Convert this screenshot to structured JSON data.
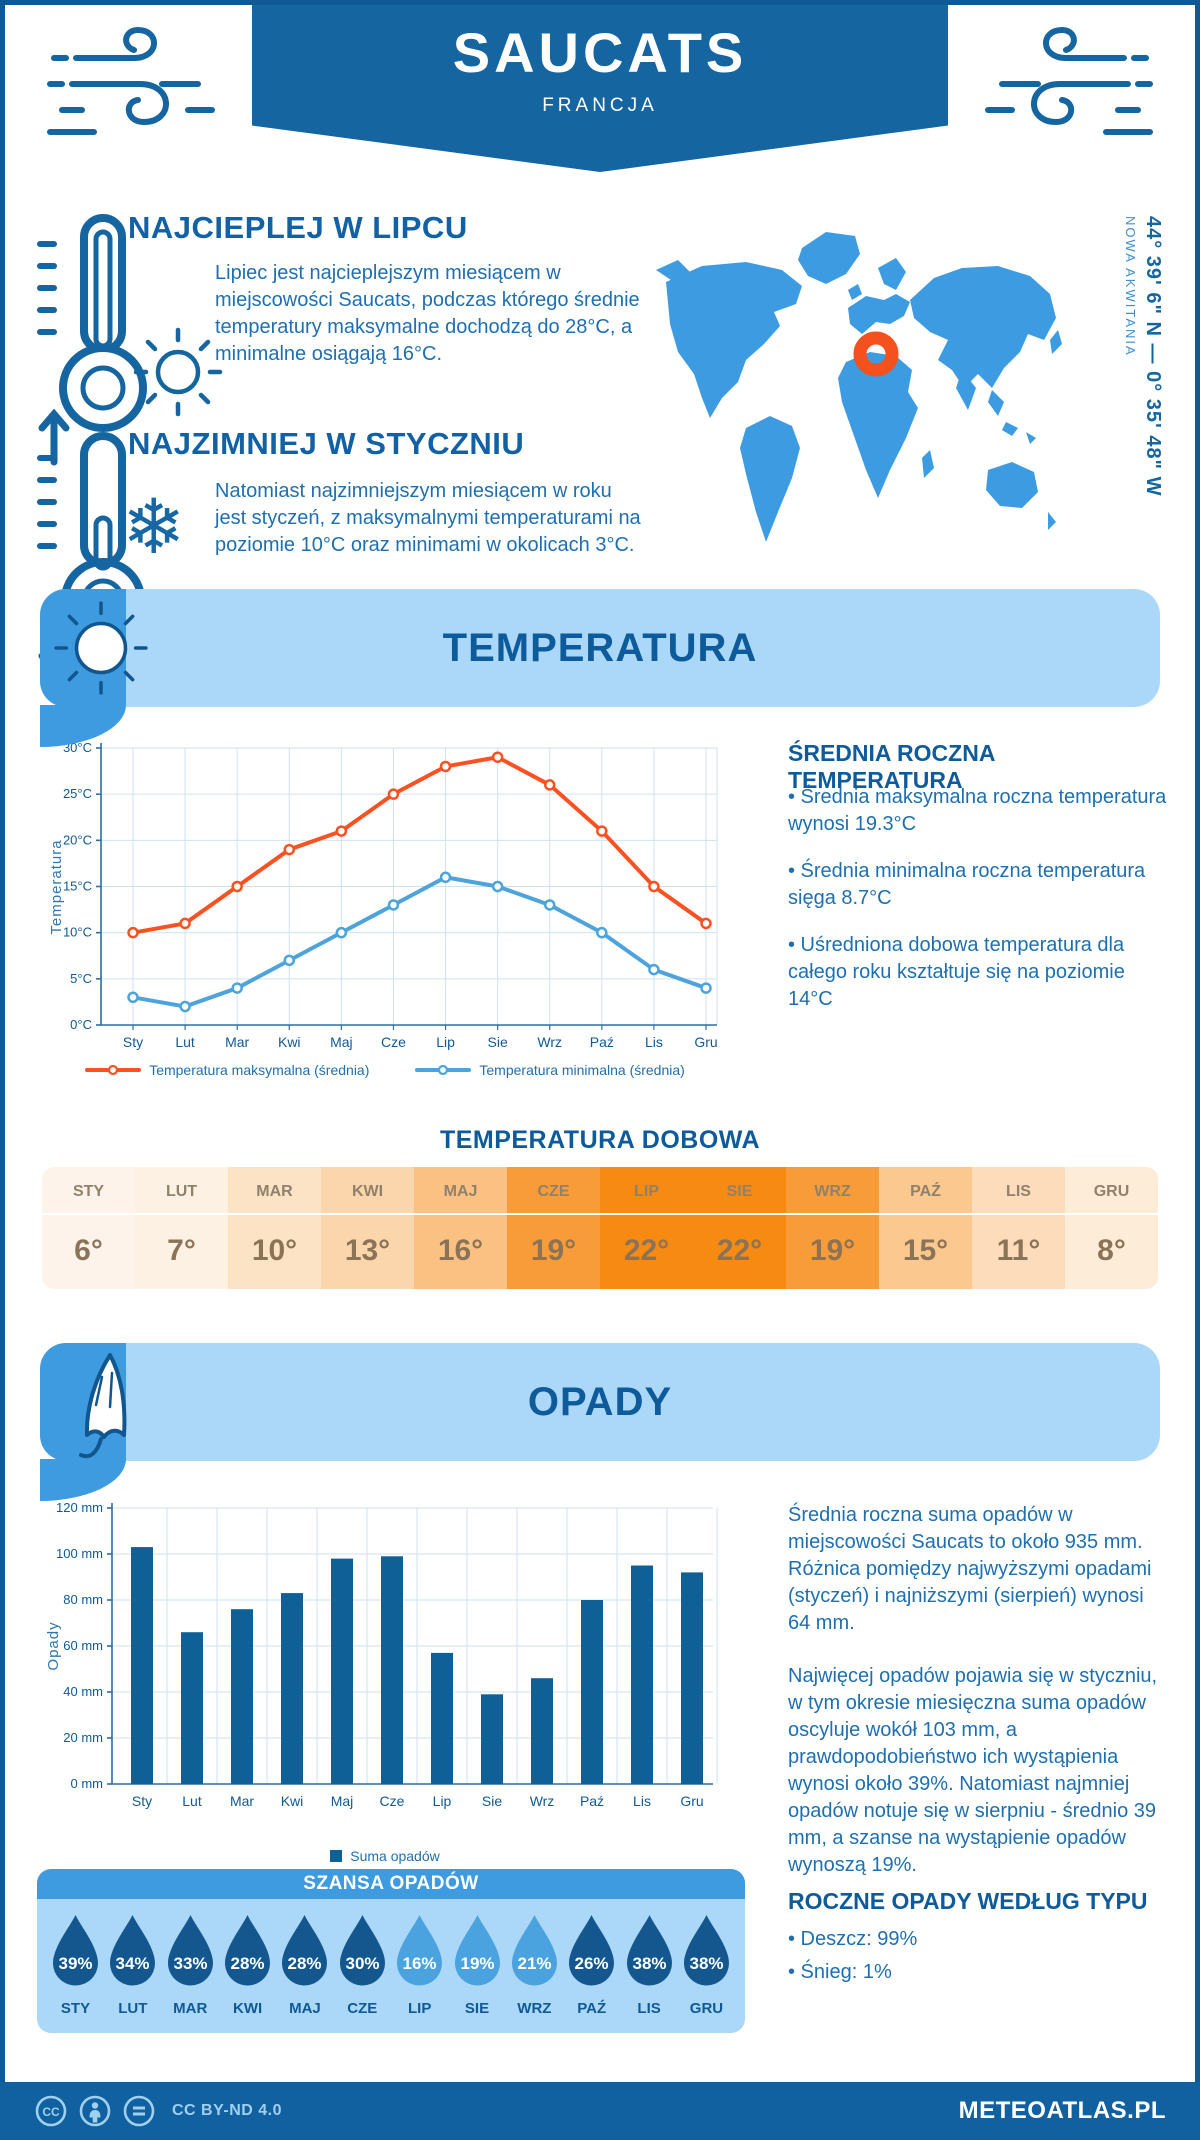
{
  "header": {
    "title": "SAUCATS",
    "subtitle": "FRANCJA"
  },
  "intro": {
    "warmest": {
      "heading": "NAJCIEPLEJ W LIPCU",
      "text": "Lipiec jest najcieplejszym miesiącem w miejscowości Saucats, podczas którego średnie temperatury maksymalne dochodzą do 28°C, a minimalne osiągają 16°C."
    },
    "coldest": {
      "heading": "NAJZIMNIEJ W STYCZNIU",
      "text": "Natomiast najzimniejszym miesiącem w roku jest styczeń, z maksymalnymi temperaturami na poziomie 10°C oraz minimami w okolicach 3°C."
    }
  },
  "map": {
    "coordinates": "44° 39' 6\" N — 0° 35' 48\" W",
    "region": "NOWA AKWITANIA",
    "marker_color": "#f4511e",
    "land_color": "#3d9be2"
  },
  "temperature": {
    "section_title": "TEMPERATURA",
    "annual": {
      "heading": "ŚREDNIA ROCZNA TEMPERATURA",
      "bullets": [
        "• Średnia maksymalna roczna temperatura wynosi 19.3°C",
        "• Średnia minimalna roczna temperatura sięga 8.7°C",
        "• Uśredniona dobowa temperatura dla całego roku kształtuje się na poziomie 14°C"
      ]
    },
    "daily": {
      "title": "TEMPERATURA DOBOWA",
      "months": [
        "STY",
        "LUT",
        "MAR",
        "KWI",
        "MAJ",
        "CZE",
        "LIP",
        "SIE",
        "WRZ",
        "PAŹ",
        "LIS",
        "GRU"
      ],
      "values": [
        "6°",
        "7°",
        "10°",
        "13°",
        "16°",
        "19°",
        "22°",
        "22°",
        "19°",
        "15°",
        "11°",
        "8°"
      ],
      "cell_colors": [
        "#fdf3ea",
        "#fdf1e4",
        "#fce3c6",
        "#fbd5ab",
        "#fbc183",
        "#f79c38",
        "#f68a12",
        "#f68a12",
        "#f79c38",
        "#fbc88f",
        "#fcdcba",
        "#fdecd8"
      ]
    }
  },
  "precipitation": {
    "section_title": "OPADY",
    "paragraphs": [
      "Średnia roczna suma opadów w miejscowości Saucats to około 935 mm. Różnica pomiędzy najwyższymi opadami (styczeń) i najniższymi (sierpień) wynosi 64 mm.",
      "Najwięcej opadów pojawia się w styczniu, w tym okresie miesięczna suma opadów oscyluje wokół 103 mm, a prawdopodobieństwo ich wystąpienia wynosi około 39%. Natomiast najmniej opadów notuje się w sierpniu - średnio 39 mm, a szanse na wystąpienie opadów wynoszą 19%."
    ],
    "chance": {
      "title": "SZANSA OPADÓW",
      "months": [
        "STY",
        "LUT",
        "MAR",
        "KWI",
        "MAJ",
        "CZE",
        "LIP",
        "SIE",
        "WRZ",
        "PAŹ",
        "LIS",
        "GRU"
      ],
      "values": [
        "39%",
        "34%",
        "33%",
        "28%",
        "28%",
        "30%",
        "16%",
        "19%",
        "21%",
        "26%",
        "38%",
        "38%"
      ],
      "drop_colors": [
        "#14578f",
        "#14578f",
        "#14578f",
        "#14578f",
        "#14578f",
        "#14578f",
        "#4aa3de",
        "#4aa3de",
        "#4aa3de",
        "#14578f",
        "#14578f",
        "#14578f"
      ]
    },
    "by_type": {
      "heading": "ROCZNE OPADY WEDŁUG TYPU",
      "bullets": [
        "• Deszcz: 99%",
        "• Śnieg: 1%"
      ]
    }
  },
  "footer": {
    "license": "CC BY-ND 4.0",
    "site": "METEOATLAS.PL"
  },
  "chart_data": [
    {
      "type": "line",
      "x": [
        "Sty",
        "Lut",
        "Mar",
        "Kwi",
        "Maj",
        "Cze",
        "Lip",
        "Sie",
        "Wrz",
        "Paź",
        "Lis",
        "Gru"
      ],
      "series": [
        {
          "name": "Temperatura maksymalna (średnia)",
          "color": "#f95222",
          "values": [
            10,
            11,
            15,
            19,
            21,
            25,
            28,
            29,
            26,
            21,
            15,
            11
          ]
        },
        {
          "name": "Temperatura minimalna (średnia)",
          "color": "#4da3dc",
          "values": [
            3,
            2,
            4,
            7,
            10,
            13,
            16,
            15,
            13,
            10,
            6,
            4
          ]
        }
      ],
      "ylabel": "Temperatura",
      "ylim": [
        0,
        30
      ],
      "ytick": 5,
      "ytick_suffix": "°C",
      "grid": true,
      "legend_position": "bottom"
    },
    {
      "type": "bar",
      "categories": [
        "Sty",
        "Lut",
        "Mar",
        "Kwi",
        "Maj",
        "Cze",
        "Lip",
        "Sie",
        "Wrz",
        "Paź",
        "Lis",
        "Gru"
      ],
      "values": [
        103,
        66,
        76,
        83,
        98,
        99,
        57,
        39,
        46,
        80,
        95,
        92
      ],
      "legend": "Suma opadów",
      "bar_color": "#0e6096",
      "ylabel": "Opady",
      "ylim": [
        0,
        120
      ],
      "ytick": 20,
      "ytick_suffix": " mm",
      "grid": true,
      "legend_position": "bottom"
    }
  ]
}
